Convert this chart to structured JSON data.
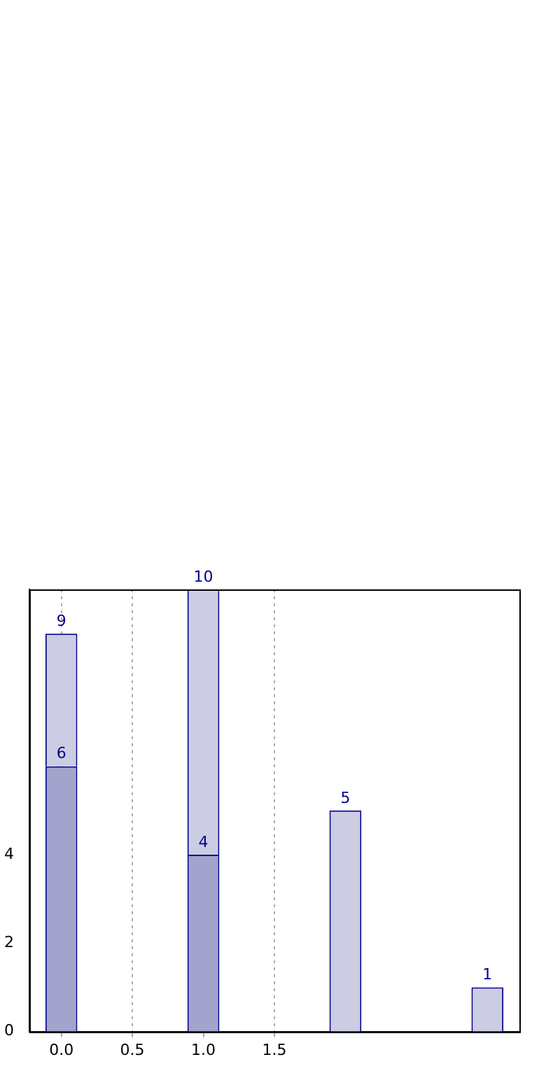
{
  "chart_data": {
    "type": "bar",
    "x": [
      0,
      1,
      2,
      3
    ],
    "stacked": true,
    "series": [
      {
        "color": "#a2a4cd",
        "values": [
          6,
          4,
          null,
          null
        ],
        "value_labels": [
          "6",
          "4",
          null,
          null
        ]
      },
      {
        "color": "#cccce3",
        "values": [
          3,
          6,
          5,
          1
        ]
      }
    ],
    "totals": [
      "9",
      "10",
      "5",
      "1"
    ],
    "xlim": [
      -0.225,
      3.225
    ],
    "xticks": [
      {
        "value": 0,
        "label": "0.0"
      },
      {
        "value": 0.5,
        "label": "0.5"
      },
      {
        "value": 1,
        "label": "1.0"
      },
      {
        "value": 1.5,
        "label": "1.5"
      }
    ],
    "ylim": [
      0,
      10
    ],
    "yticks": [
      0,
      2,
      4
    ],
    "grid": "x",
    "legend": false
  }
}
